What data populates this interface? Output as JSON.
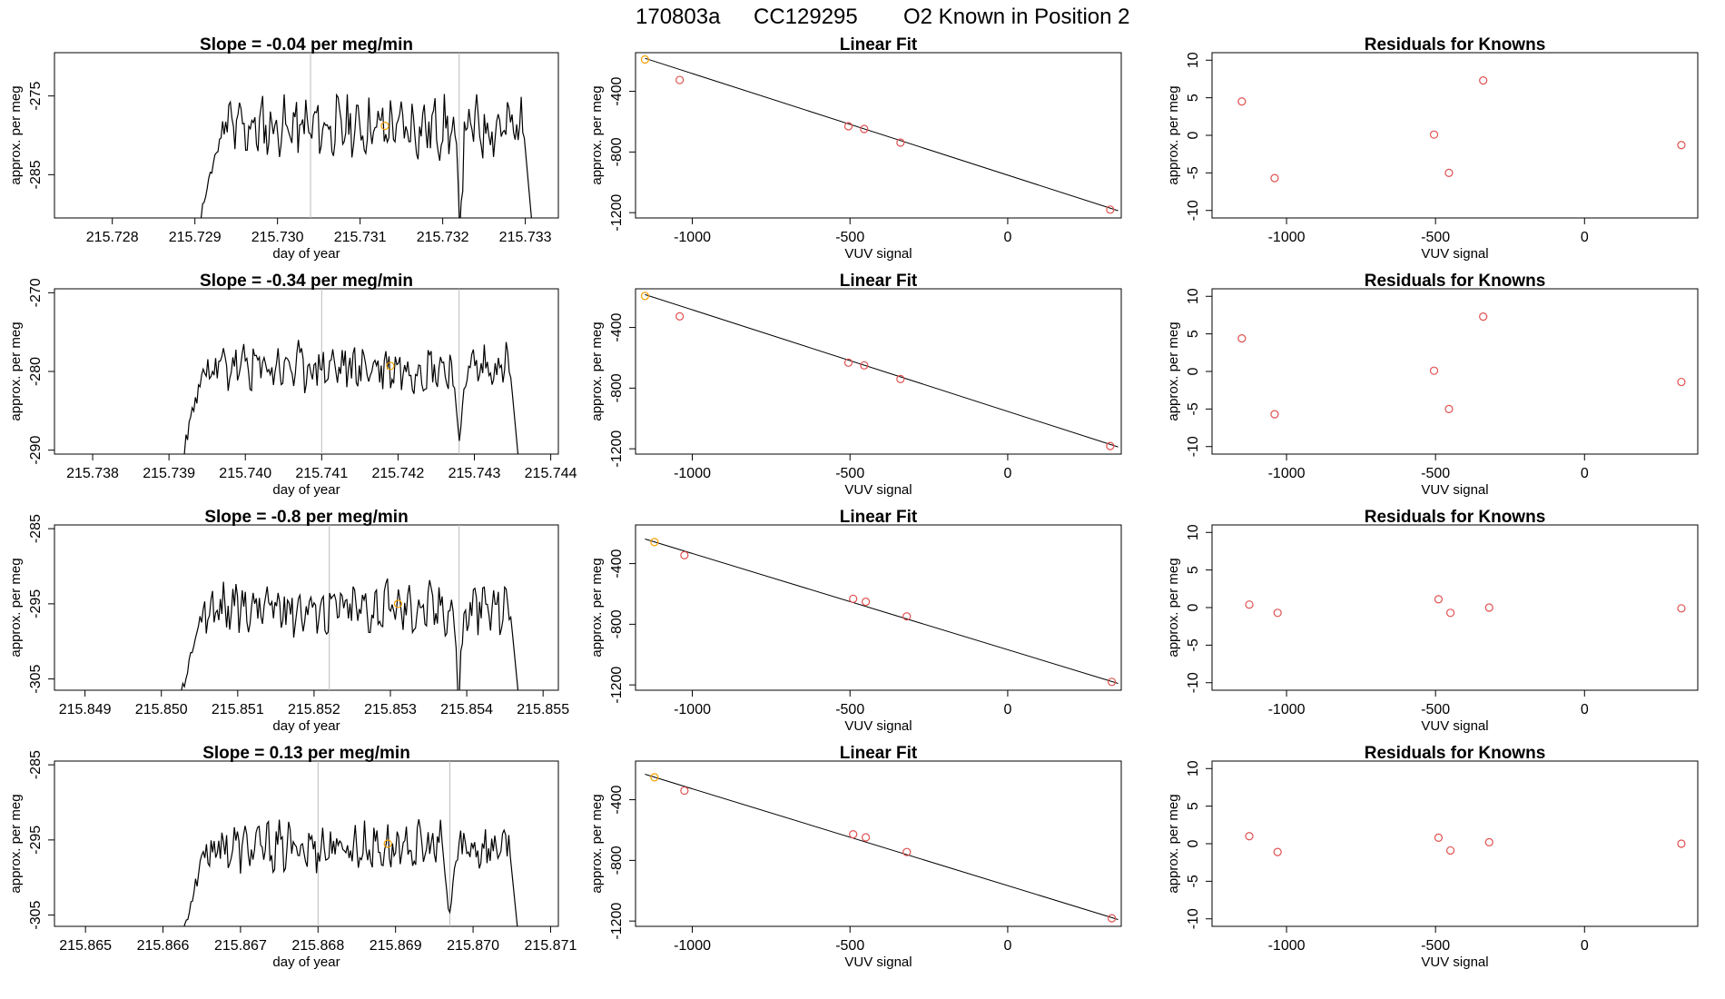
{
  "header": {
    "run_id": "170803a",
    "cylinder": "CC129295",
    "description": "O2 Known in Position  2"
  },
  "colors": {
    "line": "#000000",
    "known_point": "#f5a000",
    "residual_point": "#e05050",
    "reference_line": "#bbbbbb",
    "fit_line": "#000000"
  },
  "chart_data": [
    {
      "type": "line",
      "row": 0,
      "col": 0,
      "title": "Slope =  -0.04  per meg/min",
      "xlabel": "day of year",
      "ylabel": "approx. per meg",
      "xlim": [
        215.7273,
        215.7334
      ],
      "ylim": [
        -290.5,
        -269.5
      ],
      "xticks": [
        215.728,
        215.729,
        215.73,
        215.731,
        215.732,
        215.733
      ],
      "xtick_labels": [
        "215.728",
        "215.729",
        "215.730",
        "215.731",
        "215.732",
        "215.733"
      ],
      "yticks": [
        -275,
        -285
      ],
      "ytick_labels": [
        "-275",
        "-285"
      ],
      "vlines": [
        215.7304,
        215.7322
      ],
      "seed": 11,
      "amp": 2.8,
      "base": -279.0,
      "series_x": [
        215.729,
        215.7331
      ],
      "known_point": [
        215.7313,
        -278.8
      ]
    },
    {
      "type": "scatter",
      "row": 0,
      "col": 1,
      "title": "Linear Fit",
      "xlabel": "VUV signal",
      "ylabel": "approx. per meg",
      "xlim": [
        -1180,
        360
      ],
      "ylim": [
        -1235,
        -145
      ],
      "xticks": [
        -1000,
        -500,
        0
      ],
      "xtick_labels": [
        "-1000",
        "-500",
        "0"
      ],
      "yticks": [
        -400,
        -800,
        -1200
      ],
      "ytick_labels": [
        "-400",
        "-800",
        "-1200"
      ],
      "points": [
        [
          -1150,
          -190
        ],
        [
          -1040,
          -325
        ],
        [
          -505,
          -630
        ],
        [
          -455,
          -648
        ],
        [
          -340,
          -738
        ],
        [
          325,
          -1180
        ]
      ],
      "highlight_point": 0,
      "fit": [
        [
          -1150,
          -182
        ],
        [
          350,
          -1187
        ]
      ]
    },
    {
      "type": "scatter",
      "row": 0,
      "col": 2,
      "title": "Residuals for Knowns",
      "xlabel": "VUV signal",
      "ylabel": "approx. per meg",
      "xlim": [
        -1250,
        380
      ],
      "ylim": [
        -11,
        11
      ],
      "xticks": [
        -1000,
        -500,
        0
      ],
      "xtick_labels": [
        "-1000",
        "-500",
        "0"
      ],
      "yticks": [
        10,
        5,
        0,
        -5,
        -10
      ],
      "ytick_labels": [
        "10",
        "5",
        "0",
        "-5",
        "-10"
      ],
      "points": [
        [
          -1150,
          4.5
        ],
        [
          -1040,
          -5.7
        ],
        [
          -505,
          0.1
        ],
        [
          -455,
          -5.0
        ],
        [
          -340,
          7.3
        ],
        [
          325,
          -1.3
        ]
      ]
    },
    {
      "type": "line",
      "row": 1,
      "col": 0,
      "title": "Slope =  -0.34  per meg/min",
      "xlabel": "day of year",
      "ylabel": "approx. per meg",
      "xlim": [
        215.7375,
        215.7441
      ],
      "ylim": [
        -290.5,
        -269.5
      ],
      "xticks": [
        215.738,
        215.739,
        215.74,
        215.741,
        215.742,
        215.743,
        215.744
      ],
      "xtick_labels": [
        "215.738",
        "215.739",
        "215.740",
        "215.741",
        "215.742",
        "215.743",
        "215.744"
      ],
      "yticks": [
        -270,
        -280,
        -290
      ],
      "ytick_labels": [
        "-270",
        "-280",
        "-290"
      ],
      "vlines": [
        215.741,
        215.7428
      ],
      "seed": 23,
      "amp": 2.3,
      "base": -279.5,
      "series_x": [
        215.7391,
        215.7436
      ],
      "known_point": [
        215.7419,
        -279.3
      ]
    },
    {
      "type": "scatter",
      "row": 1,
      "col": 1,
      "title": "Linear Fit",
      "xlabel": "VUV signal",
      "ylabel": "approx. per meg",
      "xlim": [
        -1180,
        360
      ],
      "ylim": [
        -1235,
        -145
      ],
      "xticks": [
        -1000,
        -500,
        0
      ],
      "xtick_labels": [
        "-1000",
        "-500",
        "0"
      ],
      "yticks": [
        -400,
        -800,
        -1200
      ],
      "ytick_labels": [
        "-400",
        "-800",
        "-1200"
      ],
      "points": [
        [
          -1150,
          -192
        ],
        [
          -1040,
          -327
        ],
        [
          -505,
          -632
        ],
        [
          -455,
          -650
        ],
        [
          -340,
          -740
        ],
        [
          325,
          -1182
        ]
      ],
      "highlight_point": 0,
      "fit": [
        [
          -1150,
          -183
        ],
        [
          350,
          -1188
        ]
      ]
    },
    {
      "type": "scatter",
      "row": 1,
      "col": 2,
      "title": "Residuals for Knowns",
      "xlabel": "VUV signal",
      "ylabel": "approx. per meg",
      "xlim": [
        -1250,
        380
      ],
      "ylim": [
        -11,
        11
      ],
      "xticks": [
        -1000,
        -500,
        0
      ],
      "xtick_labels": [
        "-1000",
        "-500",
        "0"
      ],
      "yticks": [
        10,
        5,
        0,
        -5,
        -10
      ],
      "ytick_labels": [
        "10",
        "5",
        "0",
        "-5",
        "-10"
      ],
      "points": [
        [
          -1150,
          4.4
        ],
        [
          -1040,
          -5.7
        ],
        [
          -505,
          0.1
        ],
        [
          -455,
          -5.0
        ],
        [
          -340,
          7.3
        ],
        [
          325,
          -1.4
        ]
      ]
    },
    {
      "type": "line",
      "row": 2,
      "col": 0,
      "title": "Slope =  -0.8  per meg/min",
      "xlabel": "day of year",
      "ylabel": "approx. per meg",
      "xlim": [
        215.8486,
        215.8552
      ],
      "ylim": [
        -306.5,
        -284.5
      ],
      "xticks": [
        215.849,
        215.85,
        215.851,
        215.852,
        215.853,
        215.854,
        215.855
      ],
      "xtick_labels": [
        "215.849",
        "215.850",
        "215.851",
        "215.852",
        "215.853",
        "215.854",
        "215.855"
      ],
      "yticks": [
        -285,
        -295,
        -305
      ],
      "ytick_labels": [
        "-285",
        "-295",
        "-305"
      ],
      "vlines": [
        215.8522,
        215.8539
      ],
      "seed": 37,
      "amp": 2.6,
      "base": -295.5,
      "series_x": [
        215.8502,
        215.8547
      ],
      "known_point": [
        215.8531,
        -295.0
      ]
    },
    {
      "type": "scatter",
      "row": 2,
      "col": 1,
      "title": "Linear Fit",
      "xlabel": "VUV signal",
      "ylabel": "approx. per meg",
      "xlim": [
        -1180,
        360
      ],
      "ylim": [
        -1235,
        -145
      ],
      "xticks": [
        -1000,
        -500,
        0
      ],
      "xtick_labels": [
        "-1000",
        "-500",
        "0"
      ],
      "yticks": [
        -400,
        -800,
        -1200
      ],
      "ytick_labels": [
        "-400",
        "-800",
        "-1200"
      ],
      "points": [
        [
          -1120,
          -258
        ],
        [
          -1025,
          -345
        ],
        [
          -490,
          -632
        ],
        [
          -450,
          -652
        ],
        [
          -320,
          -748
        ],
        [
          330,
          -1180
        ]
      ],
      "highlight_point": 0,
      "fit": [
        [
          -1150,
          -238
        ],
        [
          350,
          -1190
        ]
      ]
    },
    {
      "type": "scatter",
      "row": 2,
      "col": 2,
      "title": "Residuals for Knowns",
      "xlabel": "VUV signal",
      "ylabel": "approx. per meg",
      "xlim": [
        -1250,
        380
      ],
      "ylim": [
        -11,
        11
      ],
      "xticks": [
        -1000,
        -500,
        0
      ],
      "xtick_labels": [
        "-1000",
        "-500",
        "0"
      ],
      "yticks": [
        10,
        5,
        0,
        -5,
        -10
      ],
      "ytick_labels": [
        "10",
        "5",
        "0",
        "-5",
        "-10"
      ],
      "points": [
        [
          -1125,
          0.4
        ],
        [
          -1030,
          -0.7
        ],
        [
          -490,
          1.1
        ],
        [
          -450,
          -0.7
        ],
        [
          -320,
          0.0
        ],
        [
          325,
          -0.1
        ]
      ]
    },
    {
      "type": "line",
      "row": 3,
      "col": 0,
      "title": "Slope =  0.13  per meg/min",
      "xlabel": "day of year",
      "ylabel": "approx. per meg",
      "xlim": [
        215.8646,
        215.8711
      ],
      "ylim": [
        -306.5,
        -284.5
      ],
      "xticks": [
        215.865,
        215.866,
        215.867,
        215.868,
        215.869,
        215.87,
        215.871
      ],
      "xtick_labels": [
        "215.865",
        "215.866",
        "215.867",
        "215.868",
        "215.869",
        "215.870",
        "215.871"
      ],
      "yticks": [
        -285,
        -295,
        -305
      ],
      "ytick_labels": [
        "-285",
        "-295",
        "-305"
      ],
      "vlines": [
        215.868,
        215.8697
      ],
      "seed": 53,
      "amp": 2.4,
      "base": -296.0,
      "series_x": [
        215.8662,
        215.8706
      ],
      "known_point": [
        215.8689,
        -295.5
      ]
    },
    {
      "type": "scatter",
      "row": 3,
      "col": 1,
      "title": "Linear Fit",
      "xlabel": "VUV signal",
      "ylabel": "approx. per meg",
      "xlim": [
        -1180,
        360
      ],
      "ylim": [
        -1235,
        -145
      ],
      "xticks": [
        -1000,
        -500,
        0
      ],
      "xtick_labels": [
        "-1000",
        "-500",
        "0"
      ],
      "yticks": [
        -400,
        -800,
        -1200
      ],
      "ytick_labels": [
        "-400",
        "-800",
        "-1200"
      ],
      "points": [
        [
          -1120,
          -252
        ],
        [
          -1025,
          -340
        ],
        [
          -490,
          -628
        ],
        [
          -450,
          -648
        ],
        [
          -320,
          -745
        ],
        [
          330,
          -1182
        ]
      ],
      "highlight_point": 0,
      "fit": [
        [
          -1150,
          -232
        ],
        [
          350,
          -1190
        ]
      ]
    },
    {
      "type": "scatter",
      "row": 3,
      "col": 2,
      "title": "Residuals for Knowns",
      "xlabel": "VUV signal",
      "ylabel": "approx. per meg",
      "xlim": [
        -1250,
        380
      ],
      "ylim": [
        -11,
        11
      ],
      "xticks": [
        -1000,
        -500,
        0
      ],
      "xtick_labels": [
        "-1000",
        "-500",
        "0"
      ],
      "yticks": [
        10,
        5,
        0,
        -5,
        -10
      ],
      "ytick_labels": [
        "10",
        "5",
        "0",
        "-5",
        "-10"
      ],
      "points": [
        [
          -1125,
          1.0
        ],
        [
          -1030,
          -1.1
        ],
        [
          -490,
          0.8
        ],
        [
          -450,
          -0.9
        ],
        [
          -320,
          0.2
        ],
        [
          325,
          0.0
        ]
      ]
    }
  ]
}
